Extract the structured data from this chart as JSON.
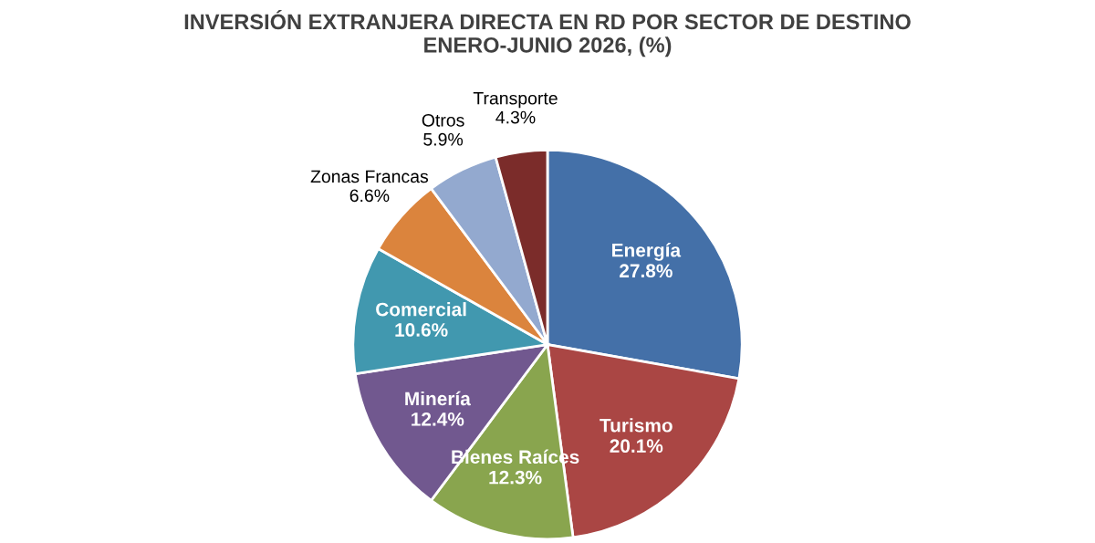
{
  "chart_data": {
    "type": "pie",
    "title": "INVERSIÓN EXTRANJERA DIRECTA EN RD POR SECTOR DE DESTINO\nENERO-JUNIO 2026, (%)",
    "categories": [
      "Energía",
      "Turismo",
      "Bienes Raíces",
      "Minería",
      "Comercial",
      "Zonas Francas",
      "Otros",
      "Transporte"
    ],
    "values": [
      27.8,
      20.1,
      12.3,
      12.4,
      10.6,
      6.6,
      5.9,
      4.3
    ],
    "colors": [
      "#4470a8",
      "#aa4644",
      "#89a54e",
      "#71588f",
      "#4198af",
      "#db843d",
      "#93a9cf",
      "#7b2c2a"
    ],
    "value_labels": [
      "27.8%",
      "20.1%",
      "12.3%",
      "12.4%",
      "10.6%",
      "6.6%",
      "5.9%",
      "4.3%"
    ]
  }
}
